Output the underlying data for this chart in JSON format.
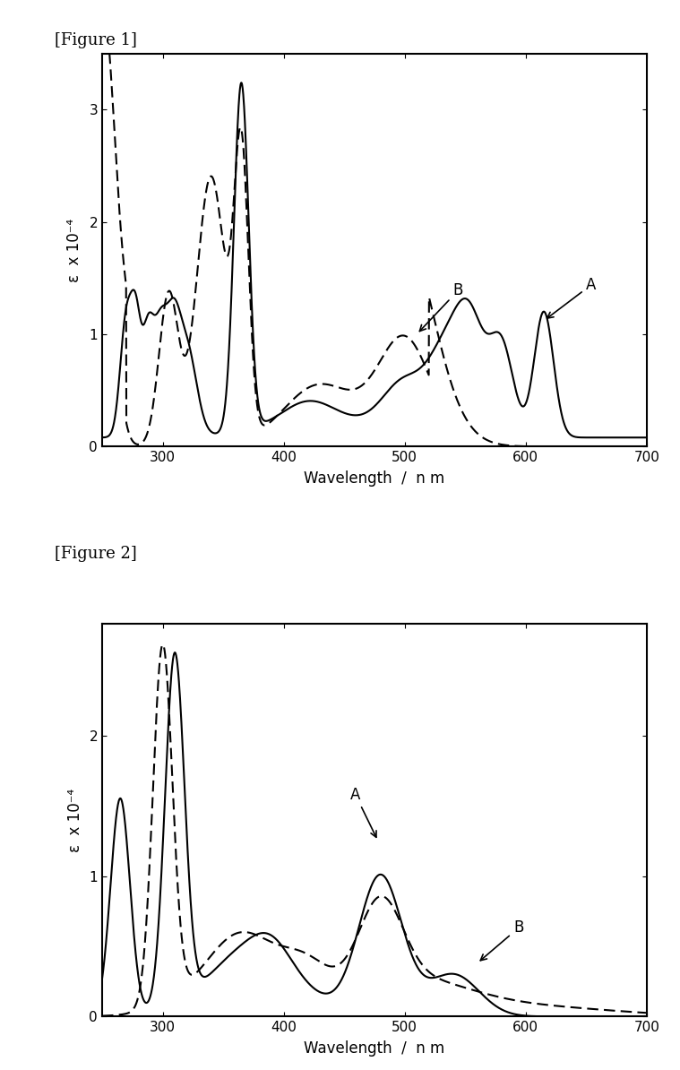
{
  "fig1_title": "[Figure 1]",
  "fig2_title": "[Figure 2]",
  "xlabel": "Wavelength  /  n m",
  "ylabel": "ε  x 10⁻⁴",
  "fig1_xlim": [
    250,
    700
  ],
  "fig1_ylim": [
    0,
    3.5
  ],
  "fig1_yticks": [
    0,
    1,
    2,
    3
  ],
  "fig1_xticks": [
    300,
    400,
    500,
    600,
    700
  ],
  "fig2_xlim": [
    250,
    700
  ],
  "fig2_ylim": [
    0,
    2.8
  ],
  "fig2_yticks": [
    0,
    1,
    2
  ],
  "fig2_xticks": [
    300,
    400,
    500,
    600,
    700
  ],
  "background": "#ffffff",
  "line_color": "#000000"
}
